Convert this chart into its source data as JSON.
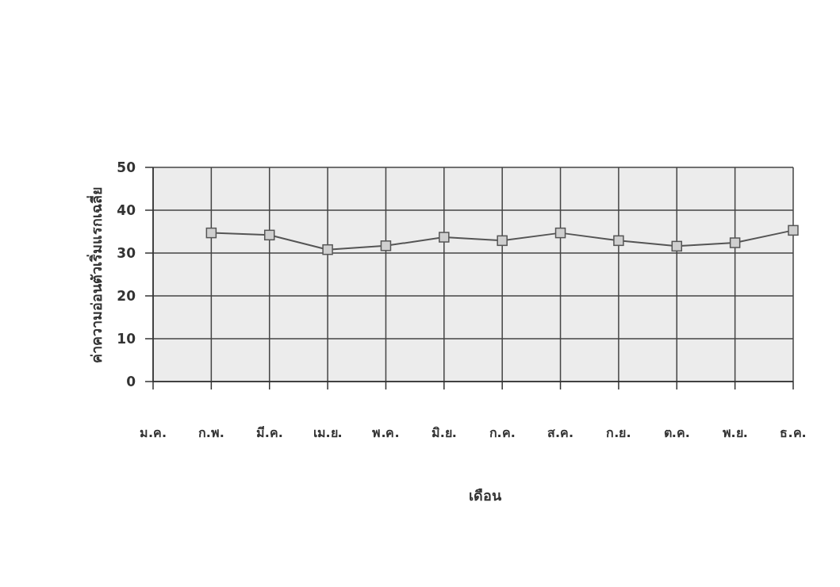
{
  "chart_data": {
    "type": "line",
    "xlabel": "เดือน",
    "ylabel": "ค่าความอ่อนตัวเริ่มแรกเฉลี่ย",
    "categories": [
      "ม.ค.",
      "ก.พ.",
      "มี.ค.",
      "เม.ย.",
      "พ.ค.",
      "มิ.ย.",
      "ก.ค.",
      "ส.ค.",
      "ก.ย.",
      "ต.ค.",
      "พ.ย.",
      "ธ.ค."
    ],
    "series": [
      {
        "color": "#555555",
        "values": [
          null,
          34.7,
          34.2,
          30.8,
          31.7,
          33.7,
          32.9,
          34.7,
          32.9,
          31.6,
          32.4,
          35.3
        ]
      }
    ],
    "ylim": [
      0,
      50
    ],
    "yticks": [
      0,
      10,
      20,
      30,
      40,
      50
    ],
    "grid": true,
    "marker": "square",
    "line_style": "solid"
  }
}
